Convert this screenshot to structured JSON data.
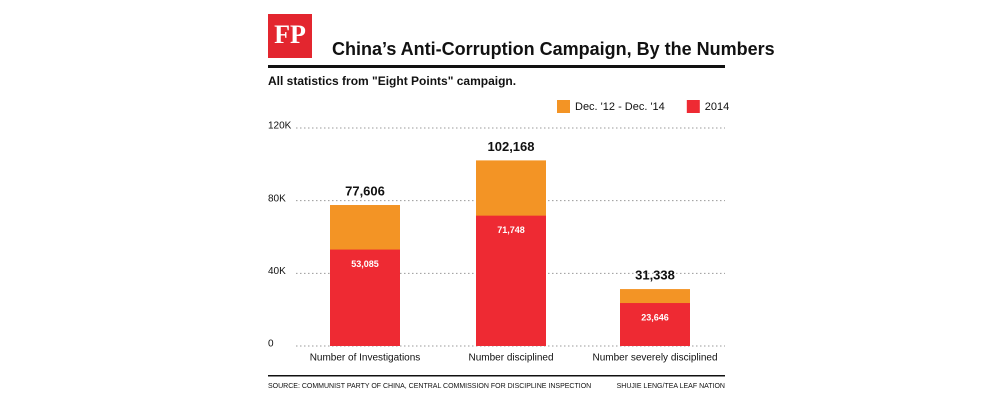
{
  "chart_data": {
    "type": "bar",
    "logo": "FP",
    "title": "China’s Anti-Corruption Campaign, By the Numbers",
    "subtitle": "All statistics from \"Eight Points\" campaign.",
    "categories": [
      "Number of Investigations",
      "Number disciplined",
      "Number severely disciplined"
    ],
    "series": [
      {
        "name": "Dec. '12 - Dec. '14",
        "color": "#f39425",
        "values": [
          77606,
          102168,
          31338
        ],
        "value_labels": [
          "77,606",
          "102,168",
          "31,338"
        ]
      },
      {
        "name": "2014",
        "color": "#ee2a33",
        "values": [
          53085,
          71748,
          23646
        ],
        "value_labels": [
          "53,085",
          "71,748",
          "23,646"
        ]
      }
    ],
    "ylim": [
      0,
      120000
    ],
    "yticks": [
      0,
      {
        "value": 40000,
        "label": "40K"
      },
      {
        "value": 80000,
        "label": "80K"
      },
      {
        "value": 120000,
        "label": "120K"
      }
    ],
    "grid": true,
    "legend": "top-right",
    "source": "SOURCE: COMMUNIST PARTY OF CHINA, CENTRAL COMMISSION FOR DISCIPLINE INSPECTION",
    "credit": "SHUJIE LENG/TEA LEAF NATION"
  }
}
